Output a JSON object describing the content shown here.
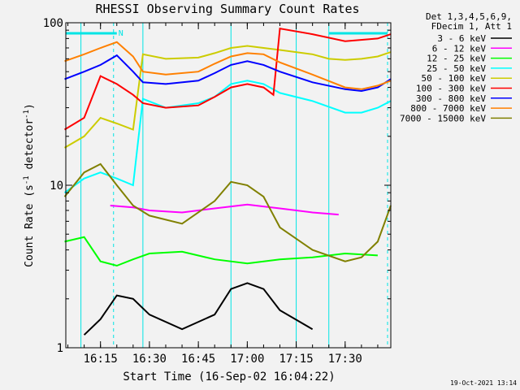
{
  "chart_data": {
    "type": "line",
    "title": "RHESSI Observing Summary Count Rates",
    "xlabel": "Start Time (16-Sep-02 16:04:22)",
    "ylabel": "Count Rate (s⁻¹ detector⁻¹)",
    "ylabel_main": "Count Rate (s",
    "ylabel_sup1": "-1",
    "ylabel_mid": " detector",
    "ylabel_sup2": "-1",
    "ylabel_end": ")",
    "yscale": "log",
    "ylim": [
      1,
      100
    ],
    "xlim": [
      "16:04:22",
      "17:44:00"
    ],
    "x_ticks": [
      "16:15",
      "16:30",
      "16:45",
      "17:00",
      "17:15",
      "17:30"
    ],
    "y_ticks": [
      "1",
      "10",
      "100"
    ],
    "legend_header": [
      "Det 1,3,4,5,6,9,",
      "FDecim 1, Att 1"
    ],
    "footer": "19-Oct-2021 13:14",
    "flag_label": "N",
    "series": [
      {
        "name": "3 - 6 keV",
        "color": "#000000",
        "points": [
          [
            "16:10",
            1.2
          ],
          [
            "16:15",
            1.5
          ],
          [
            "16:20",
            2.1
          ],
          [
            "16:25",
            2.0
          ],
          [
            "16:30",
            1.6
          ],
          [
            "16:40",
            1.3
          ],
          [
            "16:50",
            1.6
          ],
          [
            "16:55",
            2.3
          ],
          [
            "17:00",
            2.5
          ],
          [
            "17:05",
            2.3
          ],
          [
            "17:10",
            1.7
          ],
          [
            "17:20",
            1.3
          ]
        ]
      },
      {
        "name": "6 - 12 keV",
        "color": "#ff00ff",
        "points": [
          [
            "16:18",
            7.5
          ],
          [
            "16:25",
            7.3
          ],
          [
            "16:30",
            7.0
          ],
          [
            "16:40",
            6.8
          ],
          [
            "16:50",
            7.2
          ],
          [
            "17:00",
            7.6
          ],
          [
            "17:10",
            7.2
          ],
          [
            "17:20",
            6.8
          ],
          [
            "17:28",
            6.6
          ]
        ]
      },
      {
        "name": "12 - 25 keV",
        "color": "#00ff00",
        "points": [
          [
            "16:04",
            4.5
          ],
          [
            "16:10",
            4.8
          ],
          [
            "16:15",
            3.4
          ],
          [
            "16:20",
            3.2
          ],
          [
            "16:25",
            3.5
          ],
          [
            "16:30",
            3.8
          ],
          [
            "16:40",
            3.9
          ],
          [
            "16:50",
            3.5
          ],
          [
            "17:00",
            3.3
          ],
          [
            "17:10",
            3.5
          ],
          [
            "17:20",
            3.6
          ],
          [
            "17:30",
            3.8
          ],
          [
            "17:40",
            3.7
          ]
        ]
      },
      {
        "name": "25 - 50 keV",
        "color": "#00ffff",
        "points": [
          [
            "16:04",
            9.0
          ],
          [
            "16:10",
            11.0
          ],
          [
            "16:15",
            12.0
          ],
          [
            "16:20",
            11.0
          ],
          [
            "16:25",
            10.0
          ],
          [
            "16:28",
            34.0
          ],
          [
            "16:35",
            30.0
          ],
          [
            "16:45",
            32.0
          ],
          [
            "16:50",
            35.0
          ],
          [
            "16:55",
            42.0
          ],
          [
            "17:00",
            44.0
          ],
          [
            "17:05",
            42.0
          ],
          [
            "17:10",
            37.0
          ],
          [
            "17:20",
            33.0
          ],
          [
            "17:30",
            28.0
          ],
          [
            "17:35",
            28.0
          ],
          [
            "17:40",
            30.0
          ],
          [
            "17:44",
            33.0
          ]
        ]
      },
      {
        "name": "50 - 100 keV",
        "color": "#cccc00",
        "points": [
          [
            "16:04",
            17.0
          ],
          [
            "16:10",
            20.0
          ],
          [
            "16:15",
            26.0
          ],
          [
            "16:20",
            24.0
          ],
          [
            "16:25",
            22.0
          ],
          [
            "16:28",
            64.0
          ],
          [
            "16:35",
            60.0
          ],
          [
            "16:45",
            61.0
          ],
          [
            "16:50",
            65.0
          ],
          [
            "16:55",
            70.0
          ],
          [
            "17:00",
            72.0
          ],
          [
            "17:05",
            70.0
          ],
          [
            "17:10",
            68.0
          ],
          [
            "17:20",
            64.0
          ],
          [
            "17:25",
            60.0
          ],
          [
            "17:30",
            59.0
          ],
          [
            "17:35",
            60.0
          ],
          [
            "17:40",
            62.0
          ],
          [
            "17:44",
            66.0
          ]
        ]
      },
      {
        "name": "100 - 300 keV",
        "color": "#ff0000",
        "points": [
          [
            "16:04",
            22.0
          ],
          [
            "16:10",
            26.0
          ],
          [
            "16:15",
            47.0
          ],
          [
            "16:20",
            42.0
          ],
          [
            "16:25",
            36.0
          ],
          [
            "16:28",
            32.0
          ],
          [
            "16:35",
            30.0
          ],
          [
            "16:45",
            31.0
          ],
          [
            "16:50",
            35.0
          ],
          [
            "16:55",
            40.0
          ],
          [
            "17:00",
            42.0
          ],
          [
            "17:05",
            40.0
          ],
          [
            "17:08",
            36.0
          ],
          [
            "17:10",
            92.0
          ],
          [
            "17:20",
            85.0
          ],
          [
            "17:30",
            77.0
          ],
          [
            "17:40",
            80.0
          ],
          [
            "17:44",
            85.0
          ]
        ]
      },
      {
        "name": "300 - 800 keV",
        "color": "#0000ff",
        "points": [
          [
            "16:04",
            45.0
          ],
          [
            "16:10",
            50.0
          ],
          [
            "16:15",
            55.0
          ],
          [
            "16:20",
            63.0
          ],
          [
            "16:25",
            50.0
          ],
          [
            "16:28",
            43.0
          ],
          [
            "16:35",
            42.0
          ],
          [
            "16:45",
            44.0
          ],
          [
            "16:50",
            49.0
          ],
          [
            "16:55",
            55.0
          ],
          [
            "17:00",
            58.0
          ],
          [
            "17:05",
            55.0
          ],
          [
            "17:10",
            50.0
          ],
          [
            "17:20",
            43.0
          ],
          [
            "17:30",
            39.0
          ],
          [
            "17:35",
            38.0
          ],
          [
            "17:40",
            40.0
          ],
          [
            "17:44",
            45.0
          ]
        ]
      },
      {
        "name": "800 - 7000 keV",
        "color": "#ff8000",
        "points": [
          [
            "16:04",
            58.0
          ],
          [
            "16:10",
            64.0
          ],
          [
            "16:15",
            70.0
          ],
          [
            "16:20",
            76.0
          ],
          [
            "16:25",
            62.0
          ],
          [
            "16:28",
            50.0
          ],
          [
            "16:35",
            48.0
          ],
          [
            "16:45",
            50.0
          ],
          [
            "16:50",
            56.0
          ],
          [
            "16:55",
            62.0
          ],
          [
            "17:00",
            65.0
          ],
          [
            "17:05",
            64.0
          ],
          [
            "17:10",
            57.0
          ],
          [
            "17:20",
            48.0
          ],
          [
            "17:30",
            40.0
          ],
          [
            "17:35",
            39.0
          ],
          [
            "17:40",
            41.0
          ],
          [
            "17:44",
            44.0
          ]
        ]
      },
      {
        "name": "7000 - 15000 keV",
        "color": "#808000",
        "points": [
          [
            "16:04",
            8.5
          ],
          [
            "16:10",
            12.0
          ],
          [
            "16:15",
            13.5
          ],
          [
            "16:20",
            10.0
          ],
          [
            "16:25",
            7.5
          ],
          [
            "16:30",
            6.5
          ],
          [
            "16:40",
            5.8
          ],
          [
            "16:50",
            8.0
          ],
          [
            "16:55",
            10.5
          ],
          [
            "17:00",
            10.0
          ],
          [
            "17:05",
            8.5
          ],
          [
            "17:10",
            5.5
          ],
          [
            "17:20",
            4.0
          ],
          [
            "17:30",
            3.4
          ],
          [
            "17:35",
            3.6
          ],
          [
            "17:40",
            4.5
          ],
          [
            "17:44",
            7.5
          ]
        ]
      }
    ]
  }
}
